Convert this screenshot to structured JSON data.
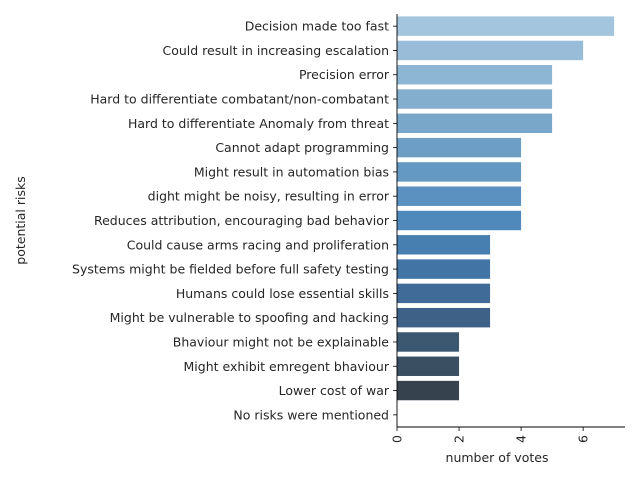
{
  "chart_data": {
    "type": "bar",
    "orientation": "horizontal",
    "xlabel": "number of votes",
    "ylabel": "potential risks",
    "xlim": [
      0,
      7.35
    ],
    "x_ticks": [
      0,
      2,
      4,
      6
    ],
    "x_tick_rotation": 90,
    "grid": false,
    "categories": [
      "Decision made too fast",
      "Could result in increasing escalation",
      "Precision error",
      "Hard to differentiate combatant/non-combatant",
      "Hard to differentiate Anomaly from threat",
      "Cannot adapt programming",
      "Might result in automation bias",
      "dight might be noisy, resulting in error",
      "Reduces attribution, encouraging bad behavior",
      "Could cause arms racing and proliferation",
      "Systems might be fielded before full safety testing",
      "Humans could lose essential skills",
      "Might be vulnerable to spoofing and hacking",
      "Bhaviour might not be explainable",
      "Might exhibit emregent bhaviour",
      "Lower cost of war",
      "No risks were mentioned"
    ],
    "values": [
      7,
      6,
      5,
      5,
      5,
      4,
      4,
      4,
      4,
      3,
      3,
      3,
      3,
      2,
      2,
      2,
      0
    ],
    "colors": [
      "#a3c5de",
      "#99bdd9",
      "#8db5d4",
      "#84aece",
      "#79a7c9",
      "#6d9fc6",
      "#6499c4",
      "#5a91c0",
      "#4f88ba",
      "#467fb0",
      "#4275a6",
      "#406b98",
      "#3e6188",
      "#3c5770",
      "#3b4f62",
      "#36424d",
      "#2c3338"
    ]
  }
}
